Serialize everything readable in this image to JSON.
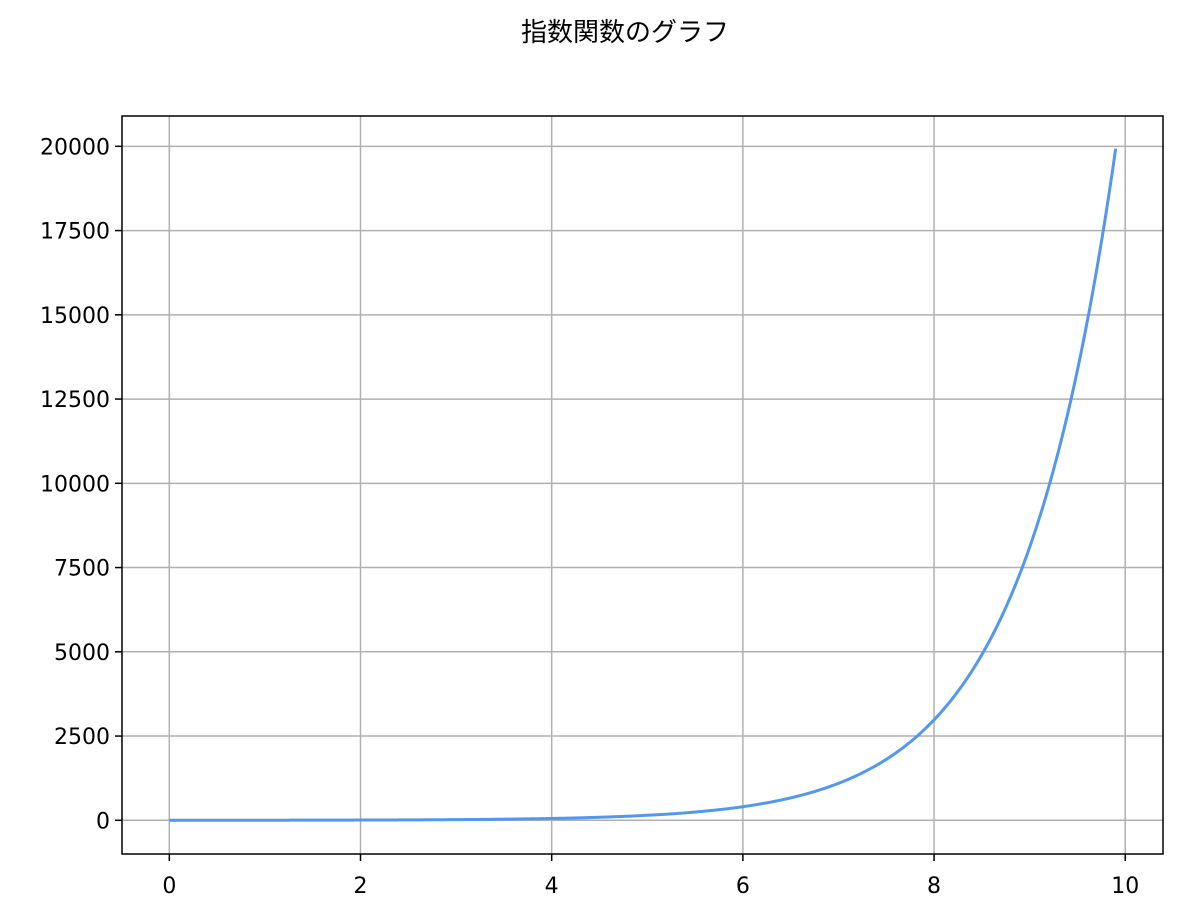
{
  "chart_data": {
    "type": "line",
    "title": "指数関数のグラフ",
    "xlabel": "",
    "ylabel": "",
    "xlim": [
      -0.495,
      10.395
    ],
    "ylim": [
      -1000,
      20900
    ],
    "x_ticks": [
      0,
      2,
      4,
      6,
      8,
      10
    ],
    "x_tick_labels": [
      "0",
      "2",
      "4",
      "6",
      "8",
      "10"
    ],
    "y_ticks": [
      0,
      2500,
      5000,
      7500,
      10000,
      12500,
      15000,
      17500,
      20000
    ],
    "y_tick_labels": [
      "0",
      "2500",
      "5000",
      "7500",
      "10000",
      "12500",
      "15000",
      "17500",
      "20000"
    ],
    "grid": true,
    "legend": "none",
    "series": [
      {
        "function": "exp(x)",
        "color": "#5497EE",
        "x_range": [
          0,
          9.9
        ],
        "x": [
          0,
          1,
          2,
          3,
          4,
          5,
          6,
          7,
          8,
          9,
          9.9
        ],
        "y": [
          1,
          2.72,
          7.39,
          20.09,
          54.6,
          148.4,
          403.4,
          1096.6,
          2981,
          8103,
          19930
        ]
      }
    ]
  }
}
